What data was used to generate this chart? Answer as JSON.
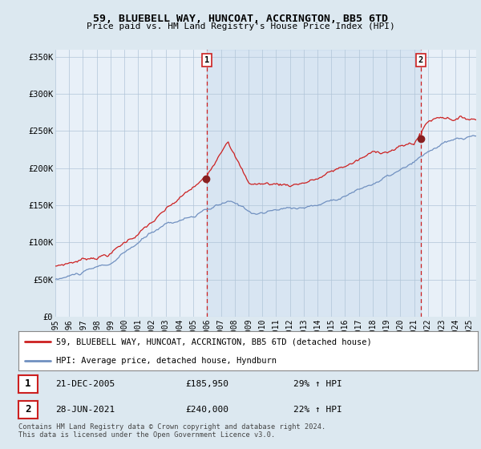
{
  "title": "59, BLUEBELL WAY, HUNCOAT, ACCRINGTON, BB5 6TD",
  "subtitle": "Price paid vs. HM Land Registry's House Price Index (HPI)",
  "hpi_label": "HPI: Average price, detached house, Hyndburn",
  "property_label": "59, BLUEBELL WAY, HUNCOAT, ACCRINGTON, BB5 6TD (detached house)",
  "sale1_date": "21-DEC-2005",
  "sale1_price": 185950,
  "sale1_hpi": "29% ↑ HPI",
  "sale2_date": "28-JUN-2021",
  "sale2_price": 240000,
  "sale2_hpi": "22% ↑ HPI",
  "footnote1": "Contains HM Land Registry data © Crown copyright and database right 2024.",
  "footnote2": "This data is licensed under the Open Government Licence v3.0.",
  "bg_color": "#dce8f0",
  "plot_bg": "#e8f0f8",
  "grid_color": "#b0c4d8",
  "red_line_color": "#cc2020",
  "blue_line_color": "#7090c0",
  "dashed_color": "#cc2020",
  "point_color": "#882020",
  "ylim": [
    0,
    360000
  ],
  "yticks": [
    0,
    50000,
    100000,
    150000,
    200000,
    250000,
    300000,
    350000
  ],
  "ytick_labels": [
    "£0",
    "£50K",
    "£100K",
    "£150K",
    "£200K",
    "£250K",
    "£300K",
    "£350K"
  ],
  "sale1_x": 2005.97,
  "sale2_x": 2021.49,
  "xstart": 1995.0,
  "xend": 2025.5
}
